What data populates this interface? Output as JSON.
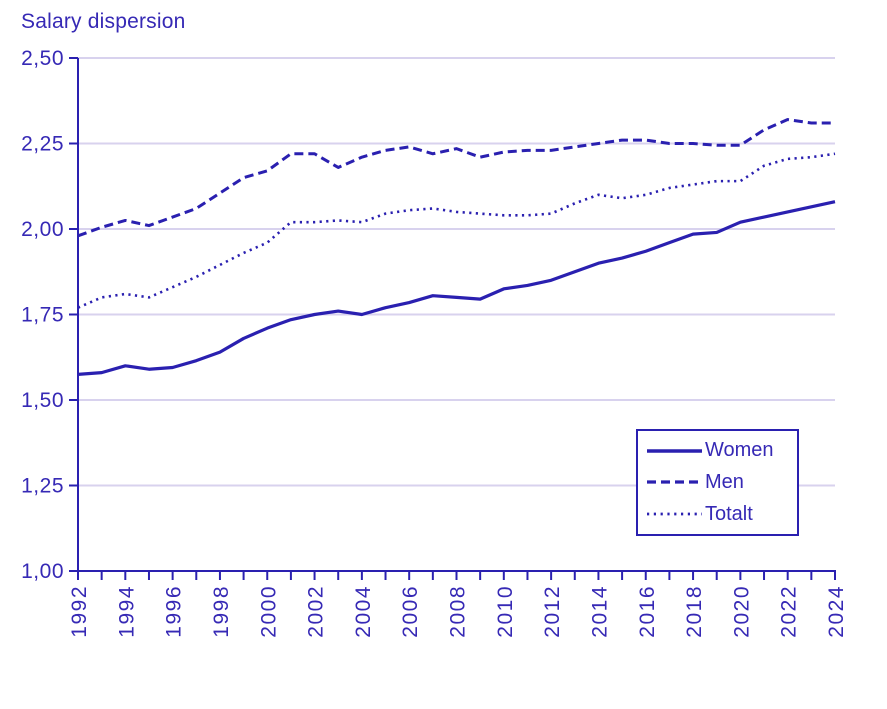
{
  "title": "Salary dispersion",
  "colors": {
    "line": "#2a20b0",
    "text": "#3629b5",
    "grid": "#d8d2ee",
    "background": "#ffffff"
  },
  "legend": {
    "items": [
      {
        "label": "Women",
        "style": "solid"
      },
      {
        "label": "Men",
        "style": "dashed"
      },
      {
        "label": "Totalt",
        "style": "dotted"
      }
    ]
  },
  "chart_data": {
    "type": "line",
    "title": "Salary dispersion",
    "xlabel": "",
    "ylabel": "",
    "x": [
      1992,
      1993,
      1994,
      1995,
      1996,
      1997,
      1998,
      1999,
      2000,
      2001,
      2002,
      2003,
      2004,
      2005,
      2006,
      2007,
      2008,
      2009,
      2010,
      2011,
      2012,
      2013,
      2014,
      2015,
      2016,
      2017,
      2018,
      2019,
      2020,
      2021,
      2022,
      2023,
      2024
    ],
    "series": [
      {
        "name": "Women",
        "style": "solid",
        "values": [
          1.575,
          1.58,
          1.6,
          1.59,
          1.595,
          1.615,
          1.64,
          1.68,
          1.71,
          1.735,
          1.75,
          1.76,
          1.75,
          1.77,
          1.785,
          1.805,
          1.8,
          1.795,
          1.825,
          1.835,
          1.85,
          1.875,
          1.9,
          1.915,
          1.935,
          1.96,
          1.985,
          1.99,
          2.02,
          2.035,
          2.05,
          2.065,
          2.08
        ]
      },
      {
        "name": "Men",
        "style": "dashed",
        "values": [
          1.98,
          2.005,
          2.025,
          2.01,
          2.035,
          2.06,
          2.105,
          2.15,
          2.17,
          2.22,
          2.22,
          2.18,
          2.21,
          2.23,
          2.24,
          2.22,
          2.235,
          2.21,
          2.225,
          2.23,
          2.23,
          2.24,
          2.25,
          2.26,
          2.26,
          2.25,
          2.25,
          2.245,
          2.245,
          2.29,
          2.32,
          2.31,
          2.31
        ]
      },
      {
        "name": "Totalt",
        "style": "dotted",
        "values": [
          1.77,
          1.8,
          1.81,
          1.8,
          1.83,
          1.86,
          1.895,
          1.93,
          1.96,
          2.02,
          2.02,
          2.025,
          2.02,
          2.045,
          2.055,
          2.06,
          2.05,
          2.045,
          2.04,
          2.04,
          2.045,
          2.075,
          2.1,
          2.09,
          2.1,
          2.12,
          2.13,
          2.14,
          2.14,
          2.185,
          2.205,
          2.21,
          2.22
        ]
      }
    ],
    "ylim": [
      1.0,
      2.5
    ],
    "yticks": [
      1.0,
      1.25,
      1.5,
      1.75,
      2.0,
      2.25,
      2.5
    ],
    "ytick_labels": [
      "1,00",
      "1,25",
      "1,50",
      "1,75",
      "2,00",
      "2,25",
      "2,50"
    ],
    "xtick_every_year": true,
    "xtick_label_step": 2,
    "xtick_label_rotation": -90,
    "decimal_separator": ",",
    "grid": "horizontal",
    "legend_position": "lower-right"
  }
}
